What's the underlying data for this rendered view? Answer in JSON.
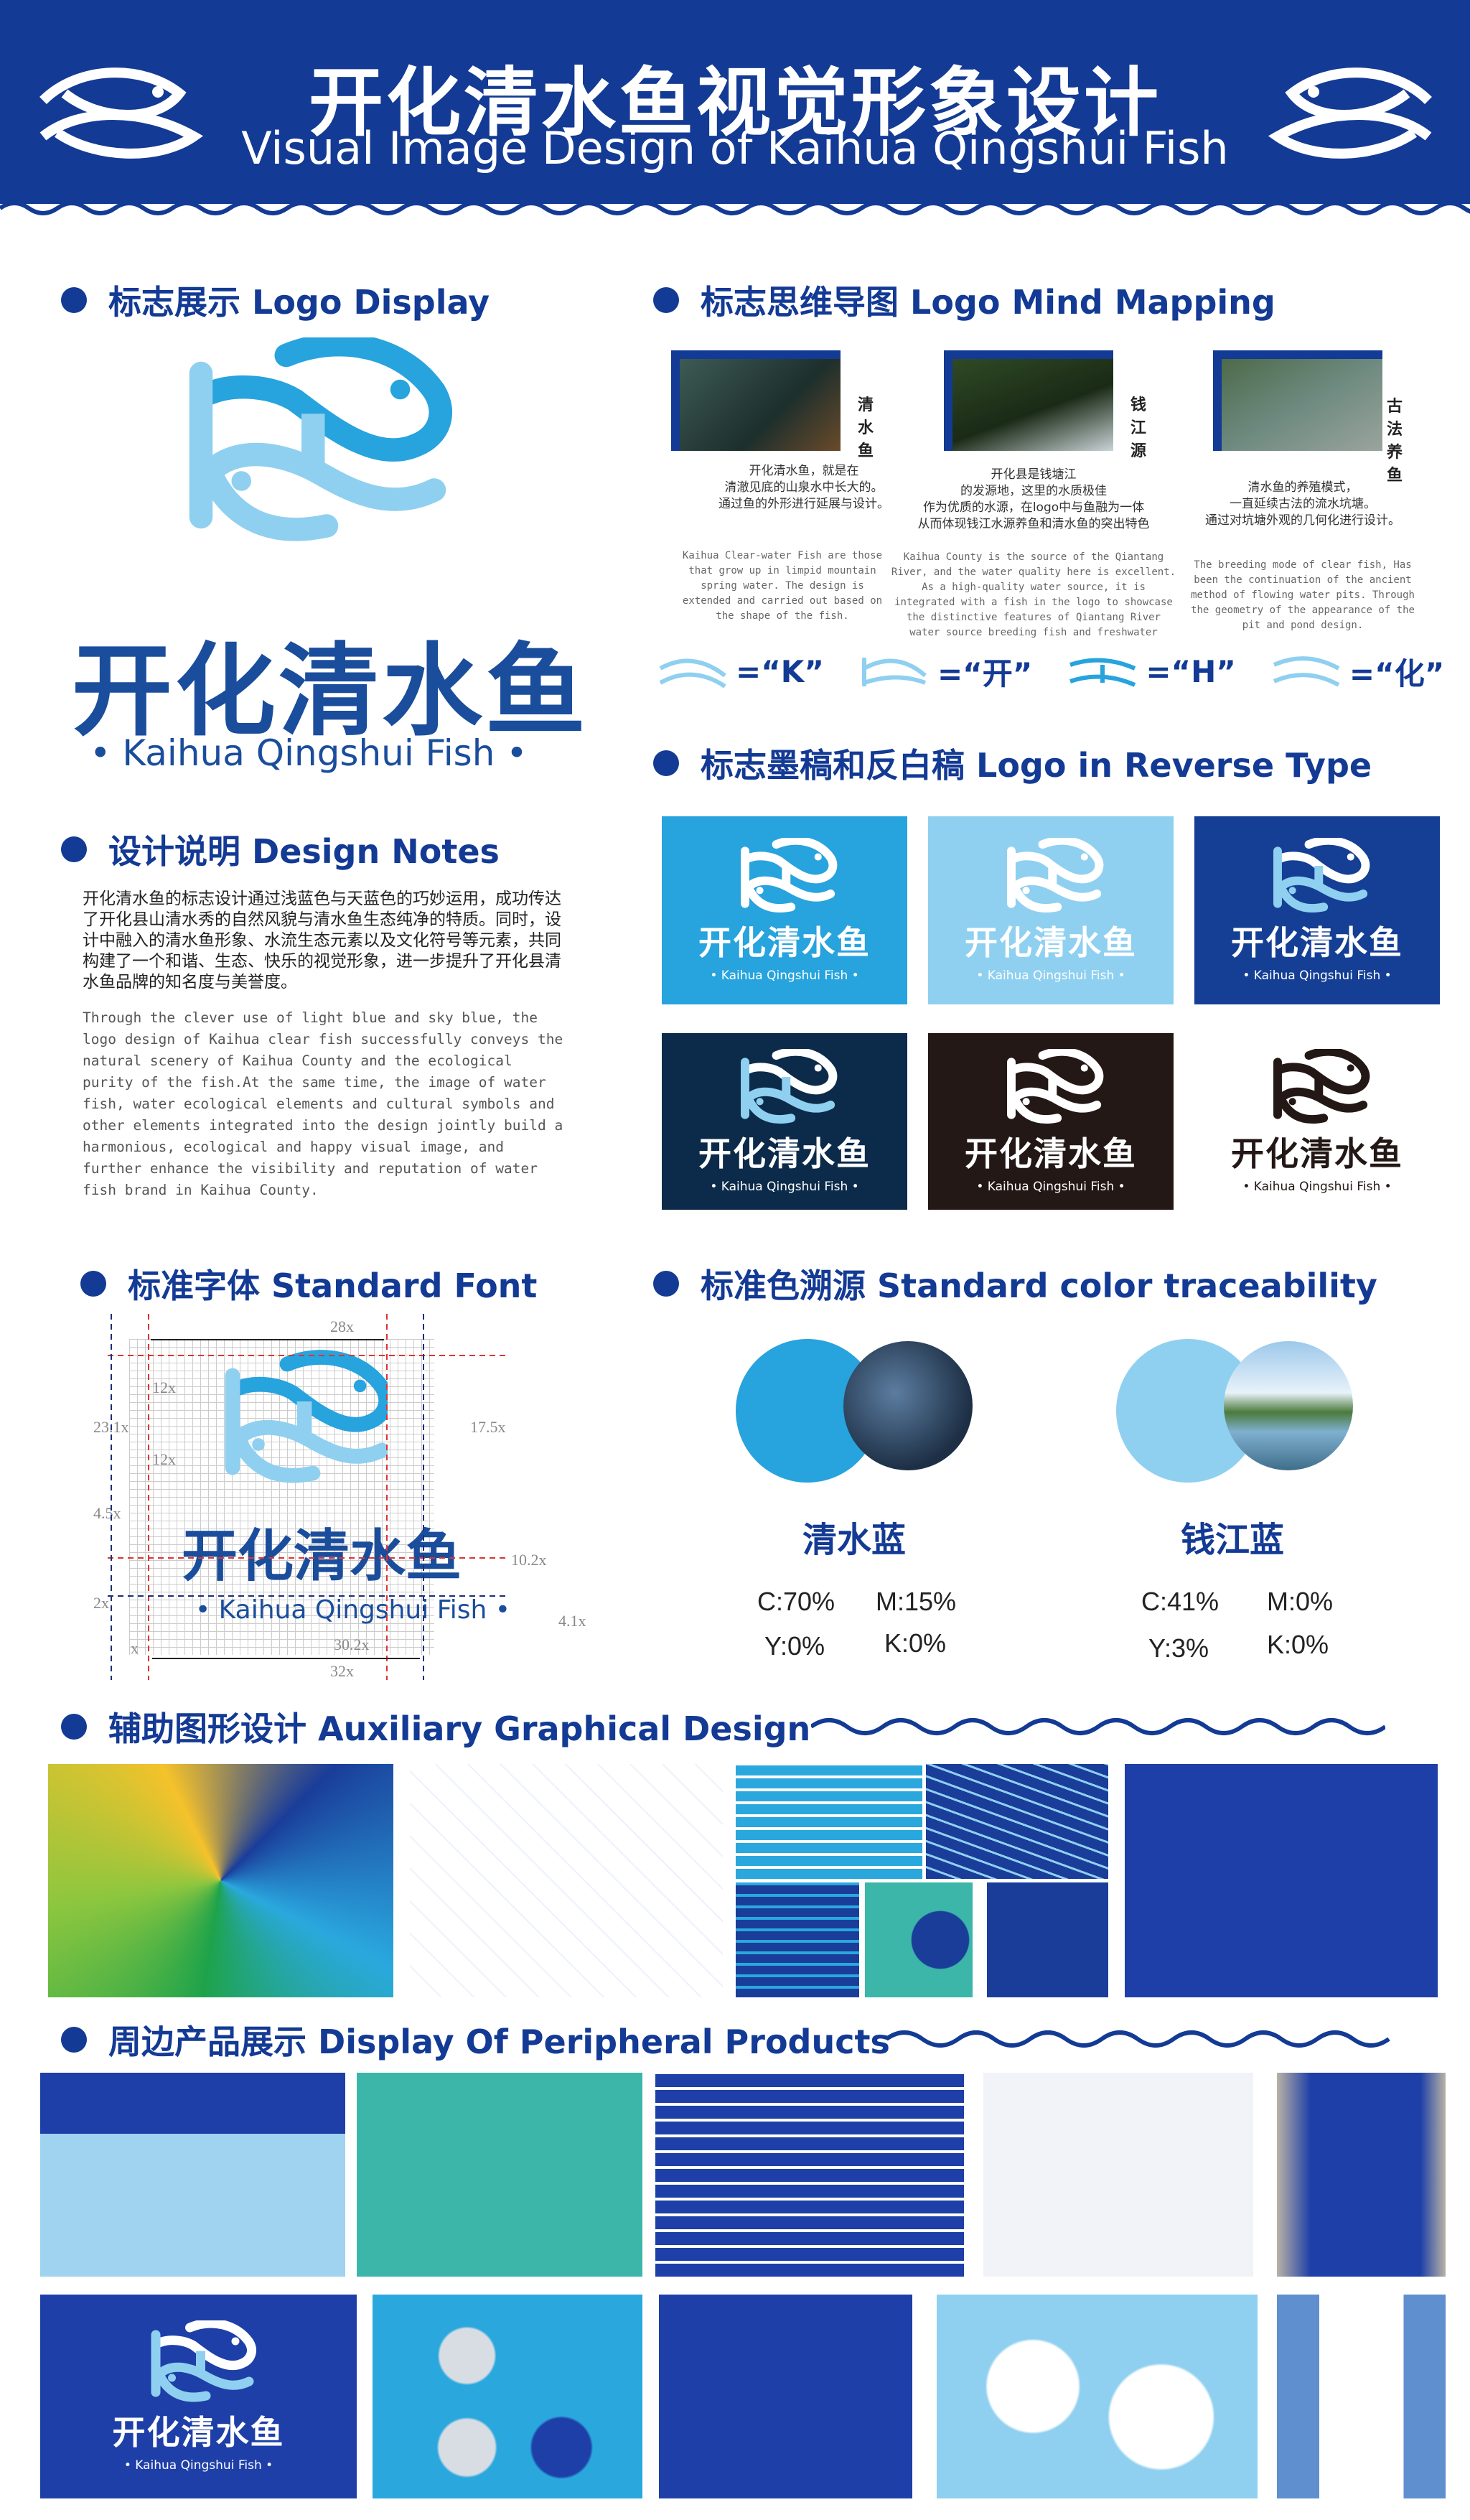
{
  "header": {
    "title_cn": "开化清水鱼视觉形象设计",
    "title_en": "Visual Image Design of Kaihua Qingshui Fish"
  },
  "brand": {
    "name_cn": "开化清水鱼",
    "name_en": "Kaihua Qingshui Fish",
    "name_en_dotted": "• Kaihua Qingshui Fish •"
  },
  "sections": {
    "logo_display": "标志展示 Logo Display",
    "mind_mapping": "标志思维导图  Logo Mind Mapping",
    "design_notes": "设计说明 Design Notes",
    "reverse": "标志墨稿和反白稿  Logo in Reverse Type",
    "font": "标准字体 Standard Font",
    "color": "标准色溯源 Standard color traceability",
    "aux": "辅助图形设计  Auxiliary Graphical Design",
    "products": "周边产品展示  Display Of Peripheral Products"
  },
  "mind_map": [
    {
      "label": "清水鱼",
      "cn": "开化清水鱼，就是在\n清澈见底的山泉水中长大的。\n通过鱼的外形进行延展与设计。",
      "en": "Kaihua Clear-water Fish are those that grow up in limpid mountain spring water. The design is extended and carried out based on the shape of the fish."
    },
    {
      "label": "钱江源",
      "cn": "开化县是钱塘江\n的发源地，这里的水质极佳\n作为优质的水源，在logo中与鱼融为一体\n从而体现钱江水源养鱼和清水鱼的突出特色",
      "en": "Kaihua County is the source of the Qiantang River, and the water quality here is excellent. As a high-quality water source, it is integrated with a fish in the logo to showcase the distinctive features of Qiantang River water source breeding fish and freshwater"
    },
    {
      "label": "古法养鱼",
      "cn": "清水鱼的养殖模式，\n一直延续古法的流水坑塘。\n通过对坑塘外观的几何化进行设计。",
      "en": "The breeding mode of clear fish, Has been the continuation of the ancient method of flowing water pits. Through the geometry of the appearance of the pit and pond design."
    }
  ],
  "equations": [
    "=“K”",
    "=“开”",
    "=“H”",
    "=“化”"
  ],
  "design_notes": {
    "cn": "开化清水鱼的标志设计通过浅蓝色与天蓝色的巧妙运用，成功传达了开化县山清水秀的自然风貌与清水鱼生态纯净的特质。同时，设计中融入的清水鱼形象、水流生态元素以及文化符号等元素，共同构建了一个和谐、生态、快乐的视觉形象，进一步提升了开化县清水鱼品牌的知名度与美誉度。",
    "en": "Through the clever use of light blue and sky blue, the logo design of Kaihua clear fish successfully conveys the natural scenery of Kaihua County and the ecological purity of the fish.At the same time, the image of water fish, water ecological elements and cultural symbols and other elements integrated into the design jointly build a harmonious, ecological and happy visual image, and further enhance the visibility and reputation of water fish brand in Kaihua County."
  },
  "reverse_tiles": [
    {
      "bg": "#27a3dd",
      "fg": "#ffffff"
    },
    {
      "bg": "#8fd0f0",
      "fg": "#ffffff"
    },
    {
      "bg": "#143f95",
      "fg": "#ffffff"
    },
    {
      "bg": "#0c2b4a",
      "fg": "#ffffff"
    },
    {
      "bg": "#231815",
      "fg": "#ffffff"
    },
    {
      "bg": "#ffffff",
      "fg": "#231815"
    }
  ],
  "font_grid": {
    "dims": [
      "28x",
      "12x",
      "12x",
      "23.1x",
      "17.5x",
      "4.5x",
      "10.2x",
      "2x",
      "4.1x",
      "30.2x",
      "32x",
      "x"
    ]
  },
  "colors": [
    {
      "name": "清水蓝",
      "hex": "#27a3dd",
      "c": "C:70%",
      "m": "M:15%",
      "y": "Y:0%",
      "k": "K:0%"
    },
    {
      "name": "钱江蓝",
      "hex": "#8fd0f0",
      "c": "C:41%",
      "m": "M:0%",
      "y": "Y:3%",
      "k": "K:0%"
    }
  ],
  "palette": {
    "navy": "#133a94",
    "sky": "#27a3dd",
    "light": "#8fd0f0"
  }
}
